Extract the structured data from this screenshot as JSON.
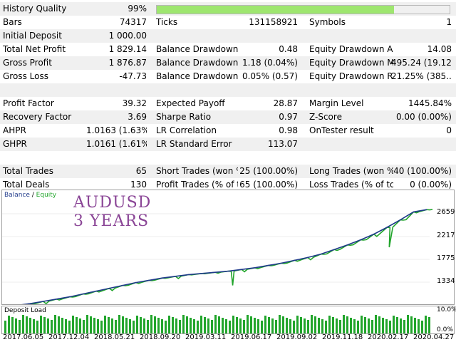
{
  "stats": [
    [
      {
        "label": "History Quality",
        "value": "99%",
        "bar": 0.81
      }
    ],
    [
      {
        "label": "Bars",
        "value": "74317"
      },
      {
        "label": "Ticks",
        "value": "131158921"
      },
      {
        "label": "Symbols",
        "value": "1"
      }
    ],
    [
      {
        "label": "Initial Deposit",
        "value": "1 000.00"
      }
    ],
    [
      {
        "label": "Total Net Profit",
        "value": "1 829.14"
      },
      {
        "label": "Balance Drawdown ...",
        "value": "0.48"
      },
      {
        "label": "Equity Drawdown A...",
        "value": "14.08"
      }
    ],
    [
      {
        "label": "Gross Profit",
        "value": "1 876.87"
      },
      {
        "label": "Balance Drawdown ...",
        "value": "1.18 (0.04%)"
      },
      {
        "label": "Equity Drawdown M...",
        "value": "495.24 (19.12..."
      }
    ],
    [
      {
        "label": "Gross Loss",
        "value": "-47.73"
      },
      {
        "label": "Balance Drawdown ...",
        "value": "0.05% (0.57)"
      },
      {
        "label": "Equity Drawdown R...",
        "value": "21.25% (385...."
      }
    ],
    [],
    [
      {
        "label": "Profit Factor",
        "value": "39.32"
      },
      {
        "label": "Expected Payoff",
        "value": "28.87"
      },
      {
        "label": "Margin Level",
        "value": "1445.84%"
      }
    ],
    [
      {
        "label": "Recovery Factor",
        "value": "3.69"
      },
      {
        "label": "Sharpe Ratio",
        "value": "0.97"
      },
      {
        "label": "Z-Score",
        "value": "0.00 (0.00%)"
      }
    ],
    [
      {
        "label": "AHPR",
        "value": "1.0163 (1.63%)"
      },
      {
        "label": "LR Correlation",
        "value": "0.98"
      },
      {
        "label": "OnTester result",
        "value": "0"
      }
    ],
    [
      {
        "label": "GHPR",
        "value": "1.0161 (1.61%)"
      },
      {
        "label": "LR Standard Error",
        "value": "113.07"
      }
    ],
    [],
    [
      {
        "label": "Total Trades",
        "value": "65"
      },
      {
        "label": "Short Trades (won %)",
        "value": "25 (100.00%)"
      },
      {
        "label": "Long Trades (won %)",
        "value": "40 (100.00%)"
      }
    ],
    [
      {
        "label": "Total Deals",
        "value": "130"
      },
      {
        "label": "Profit Trades (% of t...",
        "value": "65 (100.00%)"
      },
      {
        "label": "Loss Trades (% of to...",
        "value": "0 (0.00%)"
      }
    ]
  ],
  "chart": {
    "legend_balance": "Balance",
    "legend_sep": " / ",
    "legend_equity": "Equity",
    "watermark_line1": "AUDUSD",
    "watermark_line2": "3 YEARS",
    "ymin": 1000,
    "ymax": 3000,
    "yticks": [
      "2659",
      "2217",
      "1775",
      "1334"
    ],
    "balance": [
      1050,
      1080,
      1110,
      1150,
      1190,
      1230,
      1280,
      1330,
      1380,
      1430,
      1480,
      1520,
      1560,
      1590,
      1620,
      1640,
      1660,
      1680,
      1710,
      1740,
      1780,
      1820,
      1870,
      1920,
      1980,
      2060,
      2140,
      2230,
      2330,
      2450,
      2580,
      2720,
      2760
    ],
    "colors": {
      "balance": "#1f3a8a",
      "equity": "#22a52c",
      "deposit": "#22a52c"
    }
  },
  "deposit_load": {
    "title": "Deposit Load",
    "yticks": [
      "10.0%",
      "0.0%"
    ]
  },
  "xaxis": [
    "2017.06.05",
    "2017.12.04",
    "2018.05.21",
    "2018.09.20",
    "2019.03.11",
    "2019.06.17",
    "2019.09.02",
    "2019.11.18",
    "2020.02.17",
    "2020.04.27"
  ]
}
